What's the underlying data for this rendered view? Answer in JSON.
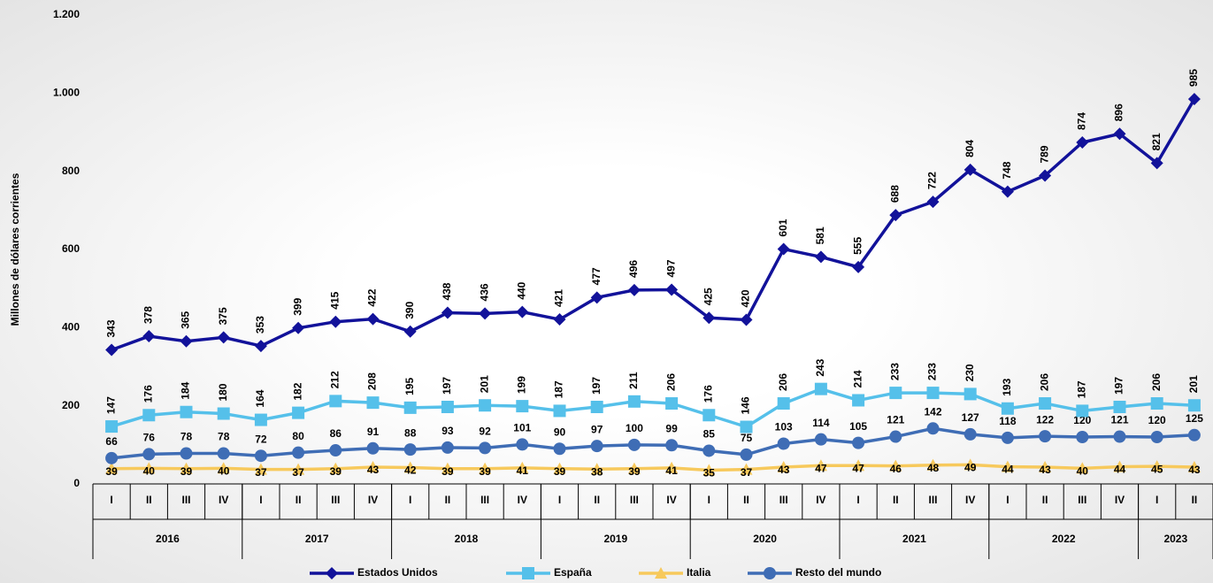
{
  "chart_data": {
    "type": "line",
    "y_label": "Millones de dólares corrientes",
    "categories": [
      {
        "quarter": "I",
        "year": "2016"
      },
      {
        "quarter": "II",
        "year": "2016"
      },
      {
        "quarter": "III",
        "year": "2016"
      },
      {
        "quarter": "IV",
        "year": "2016"
      },
      {
        "quarter": "I",
        "year": "2017"
      },
      {
        "quarter": "II",
        "year": "2017"
      },
      {
        "quarter": "III",
        "year": "2017"
      },
      {
        "quarter": "IV",
        "year": "2017"
      },
      {
        "quarter": "I",
        "year": "2018"
      },
      {
        "quarter": "II",
        "year": "2018"
      },
      {
        "quarter": "III",
        "year": "2018"
      },
      {
        "quarter": "IV",
        "year": "2018"
      },
      {
        "quarter": "I",
        "year": "2019"
      },
      {
        "quarter": "II",
        "year": "2019"
      },
      {
        "quarter": "III",
        "year": "2019"
      },
      {
        "quarter": "IV",
        "year": "2019"
      },
      {
        "quarter": "I",
        "year": "2020"
      },
      {
        "quarter": "II",
        "year": "2020"
      },
      {
        "quarter": "III",
        "year": "2020"
      },
      {
        "quarter": "IV",
        "year": "2020"
      },
      {
        "quarter": "I",
        "year": "2021"
      },
      {
        "quarter": "II",
        "year": "2021"
      },
      {
        "quarter": "III",
        "year": "2021"
      },
      {
        "quarter": "IV",
        "year": "2021"
      },
      {
        "quarter": "I",
        "year": "2022"
      },
      {
        "quarter": "II",
        "year": "2022"
      },
      {
        "quarter": "III",
        "year": "2022"
      },
      {
        "quarter": "IV",
        "year": "2022"
      },
      {
        "quarter": "I",
        "year": "2023"
      },
      {
        "quarter": "II",
        "year": "2023"
      }
    ],
    "ylim": [
      0,
      1200
    ],
    "yticks": [
      0,
      200,
      400,
      600,
      800,
      {
        "value": 1000,
        "label": "1.000"
      },
      {
        "value": 1200,
        "label": "1.200"
      }
    ],
    "grid": false,
    "legend": "bottom",
    "series": [
      {
        "name": "Estados Unidos",
        "color": "#12129a",
        "marker": "diamond",
        "values": [
          343,
          378,
          365,
          375,
          353,
          399,
          415,
          422,
          390,
          438,
          436,
          440,
          421,
          477,
          496,
          497,
          425,
          420,
          601,
          581,
          555,
          688,
          722,
          804,
          748,
          789,
          874,
          896,
          821,
          985
        ]
      },
      {
        "name": "España",
        "color": "#55c0ea",
        "marker": "square",
        "values": [
          147,
          176,
          184,
          180,
          164,
          182,
          212,
          208,
          195,
          197,
          201,
          199,
          187,
          197,
          211,
          206,
          176,
          146,
          206,
          243,
          214,
          233,
          233,
          230,
          193,
          206,
          187,
          197,
          206,
          201
        ]
      },
      {
        "name": "Italia",
        "color": "#f7c95c",
        "marker": "triangle",
        "values": [
          39,
          40,
          39,
          40,
          37,
          37,
          39,
          43,
          42,
          39,
          39,
          41,
          39,
          38,
          39,
          41,
          35,
          37,
          43,
          47,
          47,
          46,
          48,
          49,
          44,
          43,
          40,
          44,
          45,
          43
        ]
      },
      {
        "name": "Resto del mundo",
        "color": "#3f6db5",
        "marker": "circle",
        "values": [
          66,
          76,
          78,
          78,
          72,
          80,
          86,
          91,
          88,
          93,
          92,
          101,
          90,
          97,
          100,
          99,
          85,
          75,
          103,
          114,
          105,
          121,
          142,
          127,
          118,
          122,
          120,
          121,
          120,
          125
        ]
      }
    ]
  }
}
